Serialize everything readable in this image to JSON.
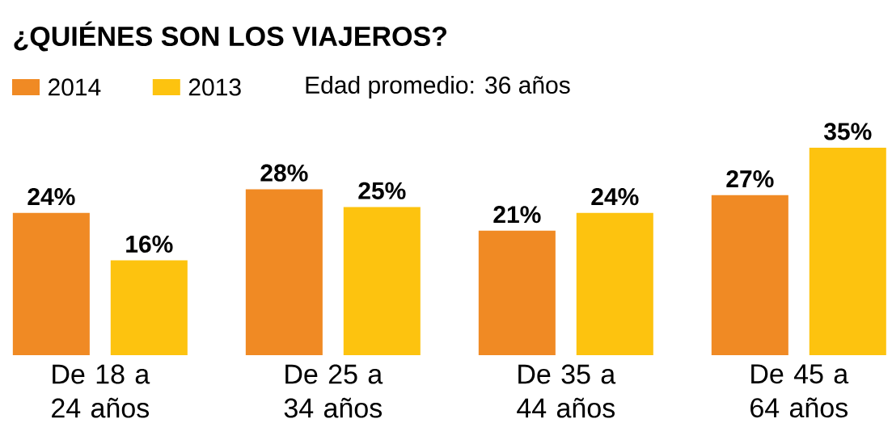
{
  "chart_data": {
    "type": "bar",
    "title": "¿QUIÉNES SON LOS VIAJEROS?",
    "annotations": [
      "Edad promedio: 36 años"
    ],
    "categories": [
      "De 18 a 24 años",
      "De 25 a 34 años",
      "De 35 a 44 años",
      "De 45 a 64 años"
    ],
    "series": [
      {
        "name": "2014",
        "color": "#f08a24",
        "values": [
          24,
          28,
          21,
          27
        ],
        "value_labels": [
          "24%",
          "28%",
          "21%",
          "27%"
        ]
      },
      {
        "name": "2013",
        "color": "#fdc30f",
        "values": [
          16,
          25,
          24,
          35
        ],
        "value_labels": [
          "16%",
          "25%",
          "24%",
          "35%"
        ]
      }
    ],
    "ylim": [
      0,
      35
    ],
    "tick_labels": "x",
    "legend": "top left"
  }
}
